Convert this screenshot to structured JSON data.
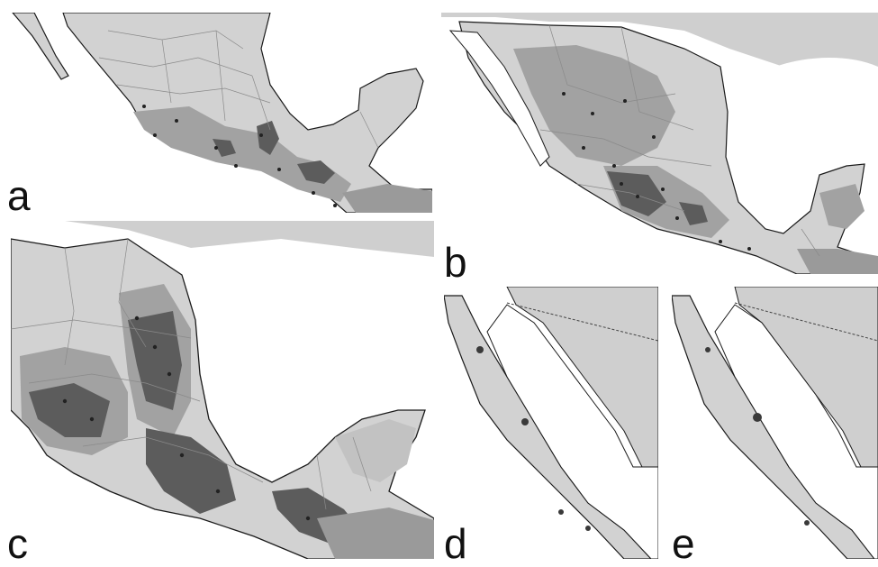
{
  "panels": [
    {
      "id": "a",
      "label": "a"
    },
    {
      "id": "b",
      "label": "b"
    },
    {
      "id": "c",
      "label": "c"
    },
    {
      "id": "d",
      "label": "d"
    },
    {
      "id": "e",
      "label": "e"
    }
  ],
  "colors": {
    "land_base": "#d2d2d2",
    "suitability_low": "#bcbcbc",
    "suitability_mid": "#a2a2a2",
    "suitability_high": "#5c5c5c",
    "outside_country": "#cfcfcf",
    "water": "#ffffff",
    "coastline": "#1a1a1a",
    "state_borders": "#8a8a8a",
    "occurrence_points": "#222222"
  }
}
